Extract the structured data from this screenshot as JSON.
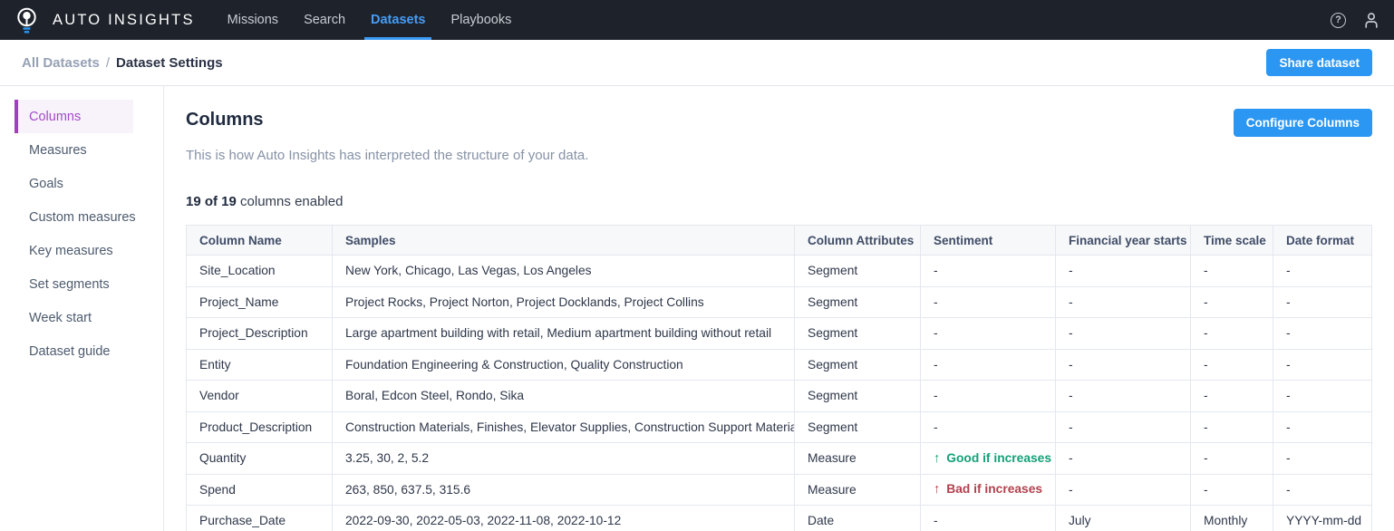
{
  "topbar": {
    "brand": "AUTO INSIGHTS",
    "logo_icon": "lightbulb-logo",
    "nav": [
      {
        "label": "Missions",
        "active": false
      },
      {
        "label": "Search",
        "active": false
      },
      {
        "label": "Datasets",
        "active": true
      },
      {
        "label": "Playbooks",
        "active": false
      }
    ],
    "right_icons": [
      "help-icon",
      "user-icon"
    ]
  },
  "breadcrumb": {
    "parent": "All Datasets",
    "separator": "/",
    "current": "Dataset Settings",
    "share_button_label": "Share dataset"
  },
  "sidebar": {
    "items": [
      {
        "label": "Columns",
        "active": true
      },
      {
        "label": "Measures",
        "active": false
      },
      {
        "label": "Goals",
        "active": false
      },
      {
        "label": "Custom measures",
        "active": false
      },
      {
        "label": "Key measures",
        "active": false
      },
      {
        "label": "Set segments",
        "active": false
      },
      {
        "label": "Week start",
        "active": false
      },
      {
        "label": "Dataset guide",
        "active": false
      }
    ]
  },
  "main": {
    "title": "Columns",
    "subtitle": "This is how Auto Insights has interpreted the structure of your data.",
    "enabled_count": "19 of 19",
    "enabled_suffix": " columns enabled",
    "configure_button_label": "Configure Columns",
    "table": {
      "headers": [
        "Column Name",
        "Samples",
        "Column Attributes",
        "Sentiment",
        "Financial year starts",
        "Time scale",
        "Date format"
      ],
      "sentiment_arrow": "↑",
      "rows": [
        {
          "name": "Site_Location",
          "samples": "New York, Chicago, Las Vegas, Los Angeles",
          "attribute": "Segment",
          "sentiment_type": "none",
          "sentiment_label": "-",
          "financial_year_starts": "-",
          "time_scale": "-",
          "date_format": "-"
        },
        {
          "name": "Project_Name",
          "samples": "Project Rocks, Project Norton, Project Docklands, Project Collins",
          "attribute": "Segment",
          "sentiment_type": "none",
          "sentiment_label": "-",
          "financial_year_starts": "-",
          "time_scale": "-",
          "date_format": "-"
        },
        {
          "name": "Project_Description",
          "samples": "Large apartment building with retail, Medium apartment building without retail",
          "attribute": "Segment",
          "sentiment_type": "none",
          "sentiment_label": "-",
          "financial_year_starts": "-",
          "time_scale": "-",
          "date_format": "-"
        },
        {
          "name": "Entity",
          "samples": "Foundation Engineering & Construction, Quality Construction",
          "attribute": "Segment",
          "sentiment_type": "none",
          "sentiment_label": "-",
          "financial_year_starts": "-",
          "time_scale": "-",
          "date_format": "-"
        },
        {
          "name": "Vendor",
          "samples": "Boral, Edcon Steel, Rondo, Sika",
          "attribute": "Segment",
          "sentiment_type": "none",
          "sentiment_label": "-",
          "financial_year_starts": "-",
          "time_scale": "-",
          "date_format": "-"
        },
        {
          "name": "Product_Description",
          "samples": "Construction Materials, Finishes, Elevator Supplies, Construction Support Materials",
          "attribute": "Segment",
          "sentiment_type": "none",
          "sentiment_label": "-",
          "financial_year_starts": "-",
          "time_scale": "-",
          "date_format": "-"
        },
        {
          "name": "Quantity",
          "samples": "3.25, 30, 2, 5.2",
          "attribute": "Measure",
          "sentiment_type": "good",
          "sentiment_label": "Good if increases",
          "financial_year_starts": "-",
          "time_scale": "-",
          "date_format": "-"
        },
        {
          "name": "Spend",
          "samples": "263, 850, 637.5, 315.6",
          "attribute": "Measure",
          "sentiment_type": "bad",
          "sentiment_label": "Bad if increases",
          "financial_year_starts": "-",
          "time_scale": "-",
          "date_format": "-"
        },
        {
          "name": "Purchase_Date",
          "samples": "2022-09-30, 2022-05-03, 2022-11-08, 2022-10-12",
          "attribute": "Date",
          "sentiment_type": "none",
          "sentiment_label": "-",
          "financial_year_starts": "July",
          "time_scale": "Monthly",
          "date_format": "YYYY-mm-dd"
        }
      ]
    }
  },
  "colors": {
    "topbar_bg": "#1e222b",
    "accent_blue": "#2b97f2",
    "nav_active_blue": "#459df5",
    "sidebar_active_purple": "#a13fc1",
    "sentiment_good_green": "#13a177",
    "sentiment_bad_red": "#b2404e"
  }
}
